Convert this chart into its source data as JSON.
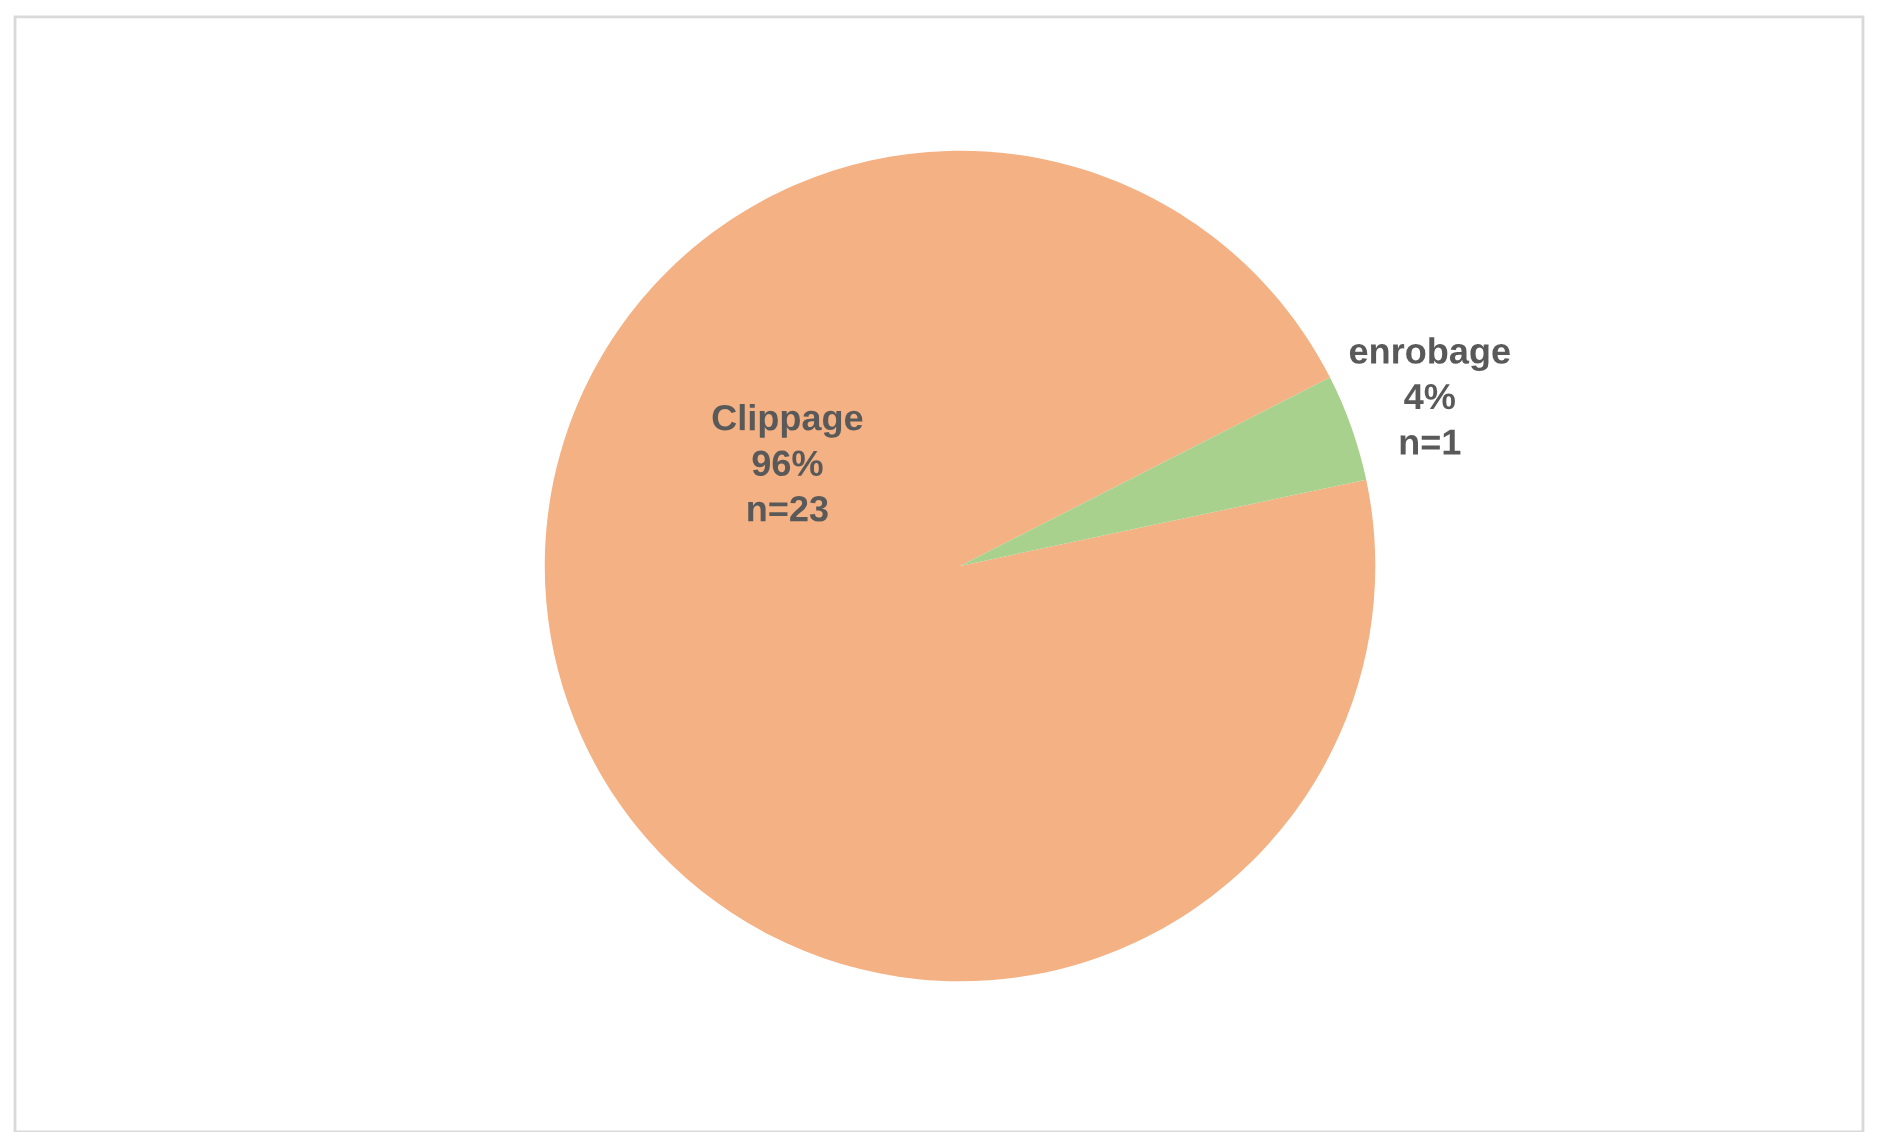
{
  "chart_data": {
    "type": "pie",
    "categories": [
      "Clippage",
      "enrobage"
    ],
    "values": [
      23,
      1
    ],
    "value_labels": [
      "96%\nn=23",
      "4%\nn=1"
    ],
    "colors": [
      "#f4b183",
      "#a9d18e"
    ],
    "legend": false
  }
}
